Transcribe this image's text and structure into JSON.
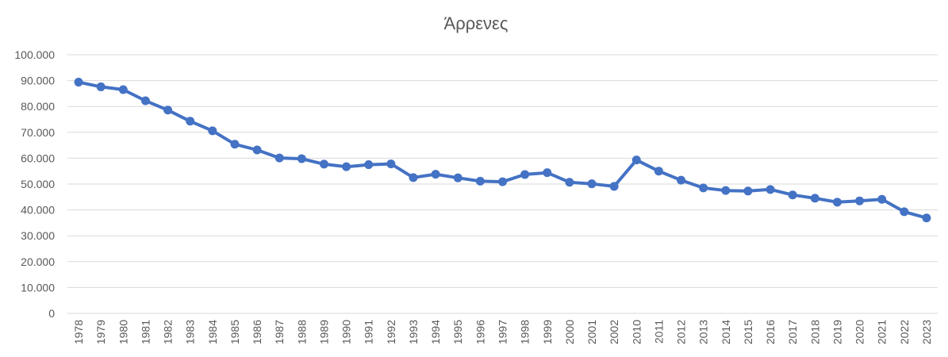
{
  "chart_data": {
    "type": "line",
    "title": "Άρρενες",
    "xlabel": "",
    "ylabel": "",
    "ylim": [
      0,
      100000
    ],
    "y_ticks": [
      "0",
      "10.000",
      "20.000",
      "30.000",
      "40.000",
      "50.000",
      "60.000",
      "70.000",
      "80.000",
      "90.000",
      "100.000"
    ],
    "grid": true,
    "legend": "none",
    "line_color": "#4472c4",
    "categories": [
      "1978",
      "1979",
      "1980",
      "1981",
      "1982",
      "1983",
      "1984",
      "1985",
      "1986",
      "1987",
      "1988",
      "1989",
      "1990",
      "1991",
      "1992",
      "1993",
      "1994",
      "1995",
      "1996",
      "1997",
      "1998",
      "1999",
      "2000",
      "2001",
      "2002",
      "2010",
      "2011",
      "2012",
      "2013",
      "2014",
      "2015",
      "2016",
      "2017",
      "2018",
      "2019",
      "2020",
      "2021",
      "2022",
      "2023"
    ],
    "series": [
      {
        "values": [
          89400,
          87600,
          86500,
          82200,
          78600,
          74300,
          70600,
          65400,
          63200,
          60100,
          59800,
          57700,
          56700,
          57500,
          57800,
          52500,
          53800,
          52400,
          51100,
          50900,
          53700,
          54400,
          50700,
          50100,
          49100,
          59300,
          55000,
          51500,
          48500,
          47500,
          47300,
          47900,
          45800,
          44500,
          43000,
          43500,
          44100,
          39300,
          36900
        ]
      }
    ]
  }
}
